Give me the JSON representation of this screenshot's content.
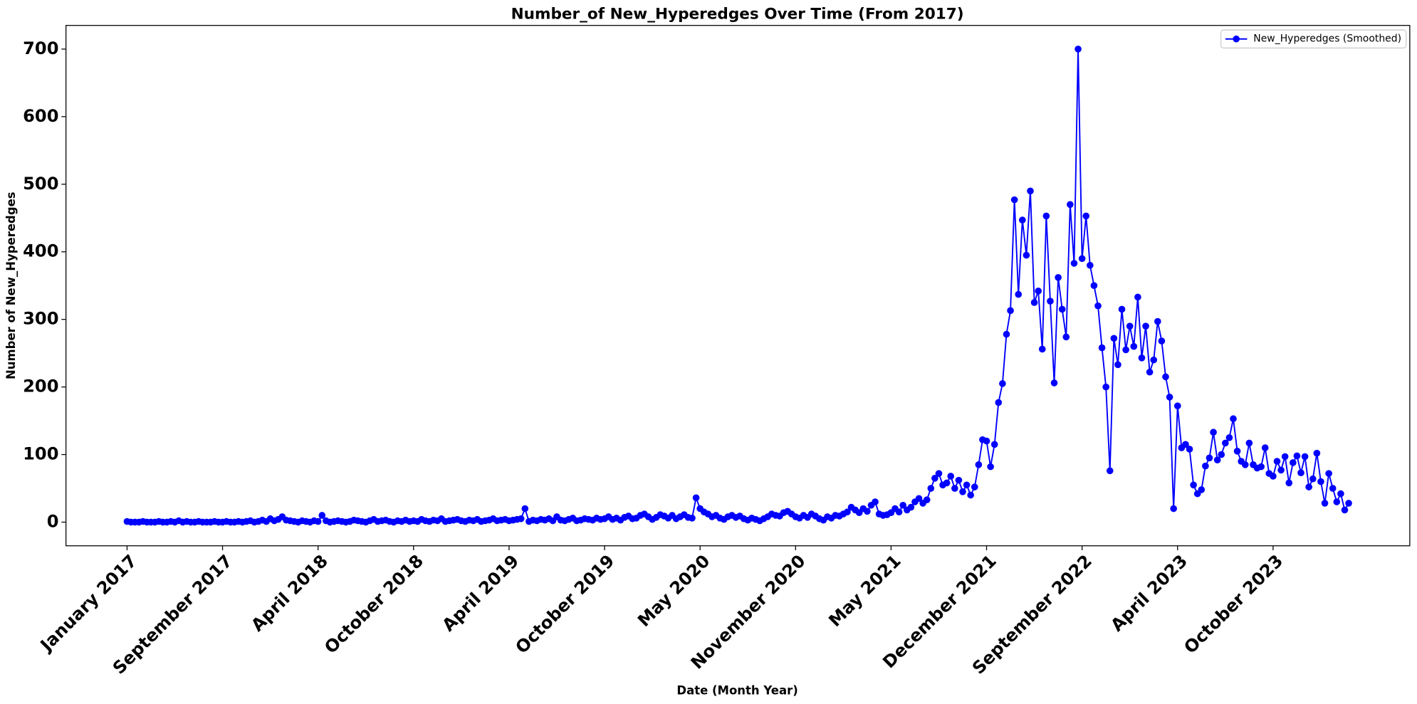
{
  "chart_data": {
    "type": "line",
    "title": "Number_of New_Hyperedges Over Time (From 2017)",
    "x_label": "Date (Month Year)",
    "y_label": "Number of New_Hyperedges",
    "categories": [
      "January 2017",
      null,
      null,
      null,
      null,
      null,
      null,
      null,
      null,
      null,
      null,
      null,
      null,
      null,
      null,
      null,
      null,
      null,
      null,
      null,
      null,
      null,
      null,
      null,
      "September 2017",
      null,
      null,
      null,
      null,
      null,
      null,
      null,
      null,
      null,
      null,
      null,
      null,
      null,
      null,
      null,
      null,
      null,
      null,
      null,
      null,
      null,
      null,
      null,
      "April 2018",
      null,
      null,
      null,
      null,
      null,
      null,
      null,
      null,
      null,
      null,
      null,
      null,
      null,
      null,
      null,
      null,
      null,
      null,
      null,
      null,
      null,
      null,
      null,
      "October 2018",
      null,
      null,
      null,
      null,
      null,
      null,
      null,
      null,
      null,
      null,
      null,
      null,
      null,
      null,
      null,
      null,
      null,
      null,
      null,
      null,
      null,
      null,
      null,
      "April 2019",
      null,
      null,
      null,
      null,
      null,
      null,
      null,
      null,
      null,
      null,
      null,
      null,
      null,
      null,
      null,
      null,
      null,
      null,
      null,
      null,
      null,
      null,
      null,
      "October 2019",
      null,
      null,
      null,
      null,
      null,
      null,
      null,
      null,
      null,
      null,
      null,
      null,
      null,
      null,
      null,
      null,
      null,
      null,
      null,
      null,
      null,
      null,
      null,
      "May 2020",
      null,
      null,
      null,
      null,
      null,
      null,
      null,
      null,
      null,
      null,
      null,
      null,
      null,
      null,
      null,
      null,
      null,
      null,
      null,
      null,
      null,
      null,
      null,
      "November 2020",
      null,
      null,
      null,
      null,
      null,
      null,
      null,
      null,
      null,
      null,
      null,
      null,
      null,
      null,
      null,
      null,
      null,
      null,
      null,
      null,
      null,
      null,
      null,
      "May 2021",
      null,
      null,
      null,
      null,
      null,
      null,
      null,
      null,
      null,
      null,
      null,
      null,
      null,
      null,
      null,
      null,
      null,
      null,
      null,
      null,
      null,
      null,
      null,
      "December 2021",
      null,
      null,
      null,
      null,
      null,
      null,
      null,
      null,
      null,
      null,
      null,
      null,
      null,
      null,
      null,
      null,
      null,
      null,
      null,
      null,
      null,
      null,
      null,
      "September 2022",
      null,
      null,
      null,
      null,
      null,
      null,
      null,
      null,
      null,
      null,
      null,
      null,
      null,
      null,
      null,
      null,
      null,
      null,
      null,
      null,
      null,
      null,
      null,
      "April 2023",
      null,
      null,
      null,
      null,
      null,
      null,
      null,
      null,
      null,
      null,
      null,
      null,
      null,
      null,
      null,
      null,
      null,
      null,
      null,
      null,
      null,
      null,
      null,
      "October 2023",
      null,
      null,
      null,
      null,
      null,
      null,
      null,
      null,
      null,
      null,
      null,
      null,
      null,
      null,
      null,
      null,
      null,
      null,
      null
    ],
    "series": [
      {
        "name": "New_Hyperedges (Smoothed)",
        "color": "#0000ff",
        "values": [
          1,
          0,
          0,
          0,
          1,
          0,
          0,
          0,
          1,
          0,
          0,
          1,
          0,
          2,
          0,
          1,
          0,
          0,
          1,
          0,
          0,
          0,
          1,
          0,
          0,
          1,
          0,
          0,
          1,
          0,
          1,
          2,
          0,
          1,
          3,
          1,
          5,
          2,
          4,
          8,
          3,
          2,
          1,
          0,
          2,
          1,
          0,
          2,
          1,
          10,
          2,
          0,
          1,
          2,
          1,
          0,
          1,
          3,
          2,
          1,
          0,
          2,
          4,
          1,
          2,
          3,
          1,
          0,
          2,
          1,
          3,
          1,
          2,
          1,
          4,
          2,
          1,
          3,
          2,
          5,
          1,
          2,
          3,
          4,
          2,
          1,
          3,
          2,
          4,
          1,
          2,
          3,
          5,
          2,
          3,
          4,
          2,
          3,
          4,
          5,
          20,
          1,
          3,
          2,
          4,
          3,
          5,
          2,
          8,
          3,
          2,
          4,
          6,
          2,
          3,
          5,
          4,
          3,
          6,
          4,
          5,
          8,
          4,
          6,
          3,
          7,
          9,
          5,
          6,
          10,
          12,
          8,
          4,
          7,
          11,
          9,
          6,
          10,
          5,
          8,
          11,
          7,
          6,
          36,
          20,
          15,
          12,
          8,
          10,
          6,
          4,
          8,
          10,
          7,
          9,
          5,
          3,
          6,
          4,
          2,
          5,
          8,
          12,
          10,
          9,
          14,
          16,
          12,
          8,
          6,
          10,
          7,
          12,
          9,
          5,
          3,
          8,
          6,
          10,
          9,
          12,
          15,
          22,
          18,
          14,
          20,
          16,
          25,
          30,
          12,
          10,
          11,
          14,
          20,
          15,
          25,
          18,
          22,
          30,
          35,
          28,
          33,
          50,
          65,
          72,
          55,
          58,
          68,
          50,
          62,
          45,
          55,
          40,
          52,
          85,
          122,
          120,
          82,
          115,
          177,
          205,
          278,
          313,
          477,
          337,
          447,
          395,
          490,
          325,
          342,
          256,
          453,
          327,
          206,
          362,
          315,
          274,
          470,
          383,
          700,
          390,
          453,
          380,
          350,
          320,
          258,
          200,
          76,
          272,
          233,
          315,
          255,
          290,
          260,
          333,
          243,
          290,
          222,
          240,
          297,
          268,
          215,
          185,
          20,
          172,
          110,
          115,
          108,
          55,
          42,
          48,
          83,
          95,
          133,
          92,
          100,
          117,
          125,
          153,
          105,
          90,
          85,
          117,
          85,
          80,
          82,
          110,
          72,
          68,
          90,
          77,
          97,
          58,
          88,
          98,
          73,
          97,
          52,
          64,
          102,
          60,
          28,
          72,
          50,
          30,
          42,
          18,
          28
        ]
      }
    ],
    "ylim": [
      -35,
      735
    ],
    "yticks": [
      0,
      100,
      200,
      300,
      400,
      500,
      600,
      700
    ],
    "legend": "upper right"
  }
}
